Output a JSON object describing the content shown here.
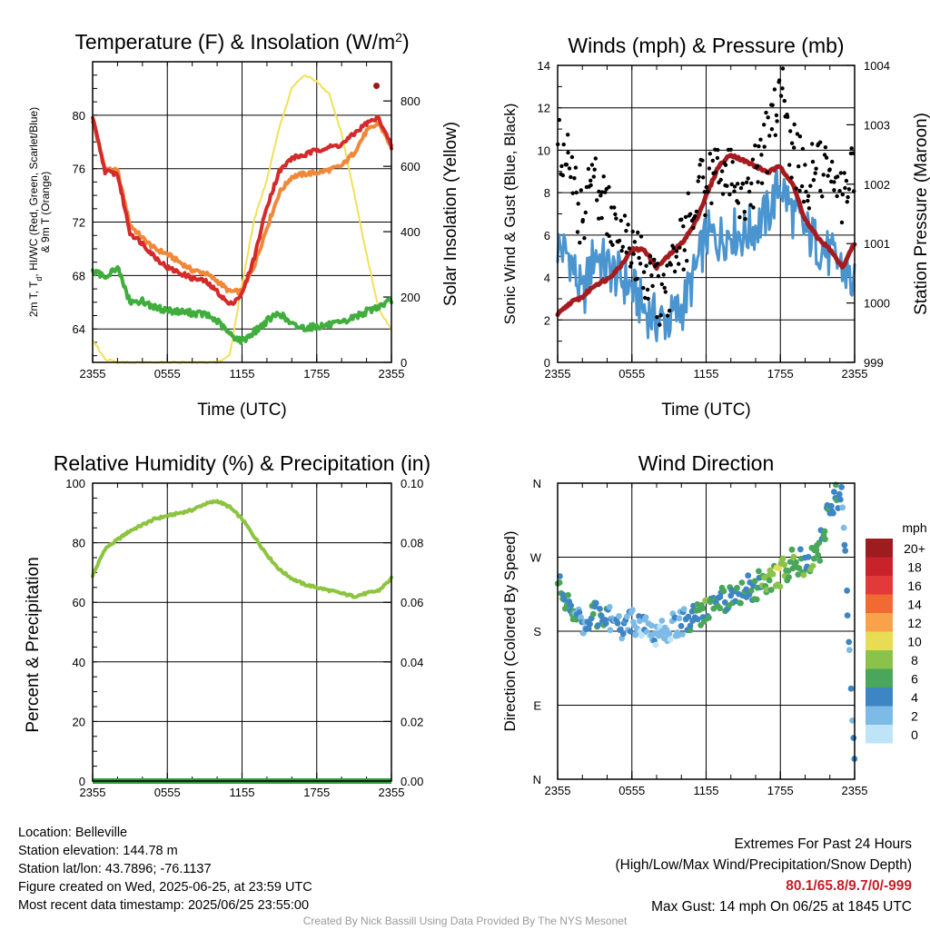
{
  "chart_data": [
    {
      "type": "line",
      "title": "Temperature (F) & Insolation (W/m",
      "title_sup": "2",
      "title_close": ")",
      "xlabel": "Time (UTC)",
      "ylabel_lines": [
        "2m T, T",
        "d",
        ", HI/WC (Red, Green, Scarlet/Blue)",
        "& 9m T (Orange)"
      ],
      "y2label": "Solar Insolation (Yellow)",
      "x_ticks": [
        "2355",
        "0555",
        "1155",
        "1755",
        "2355"
      ],
      "ylim": [
        61.5,
        84.0
      ],
      "y_ticks": [
        64,
        68,
        72,
        76,
        80
      ],
      "y2lim": [
        0,
        920
      ],
      "y2_ticks": [
        0,
        200,
        400,
        600,
        800
      ],
      "x_hours": [
        0,
        1,
        2,
        3,
        4,
        5,
        6,
        7,
        8,
        9,
        10,
        11,
        12,
        13,
        14,
        15,
        16,
        17,
        18,
        19,
        20,
        21,
        22,
        23,
        24
      ],
      "series": [
        {
          "color": "#f0883a",
          "axis": "left",
          "values": [
            79.6,
            76.0,
            75.8,
            71.8,
            70.8,
            70.0,
            69.6,
            69.0,
            68.4,
            68.2,
            67.6,
            66.8,
            66.8,
            68.8,
            71.6,
            74.2,
            75.4,
            75.6,
            75.7,
            75.9,
            76.2,
            77.2,
            78.8,
            79.4,
            77.6
          ]
        },
        {
          "color": "#d42a2a",
          "axis": "left",
          "values": [
            79.8,
            75.8,
            75.6,
            71.2,
            70.4,
            69.4,
            68.6,
            68.2,
            67.8,
            67.6,
            66.8,
            65.8,
            66.6,
            69.4,
            73.2,
            75.8,
            76.8,
            77.0,
            77.4,
            77.6,
            77.8,
            78.6,
            79.4,
            79.8,
            77.6
          ]
        },
        {
          "color": "#3fae3c",
          "axis": "left",
          "values": [
            68.2,
            68.0,
            68.6,
            66.0,
            66.1,
            65.6,
            65.4,
            65.3,
            65.2,
            65.1,
            64.6,
            63.6,
            63.1,
            63.8,
            64.6,
            65.2,
            64.3,
            64.1,
            64.2,
            64.3,
            64.4,
            64.9,
            65.3,
            65.7,
            66.1
          ]
        },
        {
          "color": "#f2e05a",
          "axis": "right",
          "values": [
            70,
            10,
            0,
            0,
            0,
            0,
            0,
            0,
            0,
            0,
            0,
            20,
            240,
            440,
            560,
            720,
            840,
            880,
            860,
            820,
            700,
            520,
            330,
            160,
            100
          ]
        }
      ],
      "markers": [
        {
          "color": "#a31515",
          "x_hour": 22.8,
          "y": 82.2
        }
      ]
    },
    {
      "type": "line",
      "title": "Winds (mph) & Pressure (mb)",
      "xlabel": "Time (UTC)",
      "ylabel": "Sonic Wind & Gust (Blue, Black)",
      "y2label": "Station Pressure (Maroon)",
      "x_ticks": [
        "2355",
        "0555",
        "1155",
        "1755",
        "2355"
      ],
      "ylim": [
        0,
        14
      ],
      "y_ticks": [
        0,
        2,
        4,
        6,
        8,
        10,
        12,
        14
      ],
      "y2lim": [
        999,
        1004
      ],
      "y2_ticks": [
        999,
        1000,
        1001,
        1002,
        1003,
        1004
      ],
      "x_hours": [
        0,
        1,
        2,
        3,
        4,
        5,
        6,
        7,
        8,
        9,
        10,
        11,
        12,
        13,
        14,
        15,
        16,
        17,
        18,
        19,
        20,
        21,
        22,
        23,
        24
      ],
      "series": [
        {
          "color": "#4a94d0",
          "axis": "left",
          "values": [
            5.5,
            5.0,
            3.0,
            5.2,
            4.5,
            4.0,
            3.5,
            2.5,
            2.0,
            2.0,
            2.5,
            4.0,
            6.0,
            5.8,
            6.2,
            6.0,
            6.4,
            7.0,
            8.5,
            7.0,
            6.2,
            5.6,
            5.0,
            4.5,
            3.5
          ]
        },
        {
          "color": "#a51c20",
          "axis": "right",
          "values": [
            999.8,
            1000.0,
            1000.1,
            1000.3,
            1000.4,
            1000.6,
            1000.9,
            1000.9,
            1000.6,
            1000.8,
            1001.0,
            1001.3,
            1001.8,
            1002.3,
            1002.5,
            1002.4,
            1002.3,
            1002.2,
            1002.3,
            1002.0,
            1001.4,
            1001.1,
            1000.9,
            1000.6,
            1001.0
          ]
        },
        {
          "color": "#000000",
          "axis": "left",
          "mode": "markers",
          "values": [
            10.0,
            9.0,
            6.5,
            9.0,
            7.0,
            6.0,
            5.5,
            4.5,
            3.0,
            3.8,
            5.5,
            7.5,
            8.5,
            9.0,
            8.5,
            8.0,
            8.8,
            10.5,
            13.0,
            10.0,
            8.5,
            9.0,
            8.5,
            8.0,
            9.0
          ]
        }
      ]
    },
    {
      "type": "line",
      "title": "Relative Humidity (%) & Precipitation (in)",
      "ylabel": "Percent & Precipitation",
      "x_ticks": [
        "2355",
        "0555",
        "1155",
        "1755",
        "2355"
      ],
      "ylim": [
        0,
        100
      ],
      "y_ticks": [
        0,
        20,
        40,
        60,
        80,
        100
      ],
      "y2lim": [
        0,
        0.1
      ],
      "y2_ticks": [
        "0.00",
        "0.02",
        "0.04",
        "0.06",
        "0.08",
        "0.10"
      ],
      "x_hours": [
        0,
        1,
        2,
        3,
        4,
        5,
        6,
        7,
        8,
        9,
        10,
        11,
        12,
        13,
        14,
        15,
        16,
        17,
        18,
        19,
        20,
        21,
        22,
        23,
        24
      ],
      "series": [
        {
          "color": "#8cc43f",
          "axis": "left",
          "values": [
            69,
            78,
            81,
            84,
            86,
            88,
            89,
            90,
            91,
            93,
            94,
            92,
            88,
            82,
            76,
            71,
            68,
            66,
            65,
            64,
            63,
            62,
            63,
            64,
            68
          ]
        },
        {
          "color": "#2f9a3a",
          "axis": "right",
          "values": [
            0,
            0,
            0,
            0,
            0,
            0,
            0,
            0,
            0,
            0,
            0,
            0,
            0,
            0,
            0,
            0,
            0,
            0,
            0,
            0,
            0,
            0,
            0,
            0,
            0
          ]
        }
      ]
    },
    {
      "type": "scatter",
      "title": "Wind Direction",
      "ylabel": "Direction (Colored By Speed)",
      "x_ticks": [
        "2355",
        "0555",
        "1155",
        "1755",
        "2355"
      ],
      "y_ticks": [
        "N",
        "E",
        "S",
        "W",
        "N"
      ],
      "ylim": [
        0,
        360
      ],
      "x_hours": [
        0,
        1,
        2,
        3,
        4,
        5,
        6,
        7,
        8,
        9,
        10,
        11,
        12,
        13,
        14,
        15,
        16,
        17,
        18,
        19,
        20,
        21,
        22,
        23,
        24
      ],
      "direction_deg": [
        240,
        210,
        190,
        200,
        195,
        185,
        190,
        180,
        180,
        185,
        190,
        200,
        205,
        215,
        225,
        230,
        235,
        240,
        250,
        265,
        265,
        270,
        330,
        355,
        5
      ],
      "speed_mph": [
        6,
        5,
        3,
        5,
        4,
        3,
        3,
        2,
        2,
        2,
        3,
        4,
        6,
        5,
        5,
        5,
        5,
        7,
        8,
        6,
        6,
        6,
        4,
        4,
        3
      ],
      "colorbar": {
        "title": "mph",
        "labels": [
          "20+",
          "18",
          "16",
          "14",
          "12",
          "10",
          "8",
          "6",
          "4",
          "2",
          "0"
        ],
        "colors": [
          "#9d1c1e",
          "#c8232a",
          "#e2393a",
          "#f06a31",
          "#f9a24a",
          "#e9dc55",
          "#8bc24a",
          "#4aa65a",
          "#3e85c3",
          "#7dbbe6",
          "#bfe4f7"
        ]
      }
    }
  ],
  "info": {
    "location": "Location: Belleville",
    "elevation": "Station elevation: 144.78 m",
    "latlon": "Station lat/lon: 43.7896; -76.1137",
    "created": "Figure created on Wed, 2025-06-25, at 23:59 UTC",
    "recent": "Most recent data timestamp: 2025/06/25 23:55:00"
  },
  "extremes": {
    "title": "Extremes For Past 24 Hours",
    "subtitle": "(High/Low/Max Wind/Precipitation/Snow Depth)",
    "values": "80.1/65.8/9.7/0/-999",
    "gust": "Max Gust: 14 mph On 06/25 at 1845 UTC"
  },
  "credit": "Created By Nick Bassill Using Data Provided By The NYS Mesonet"
}
